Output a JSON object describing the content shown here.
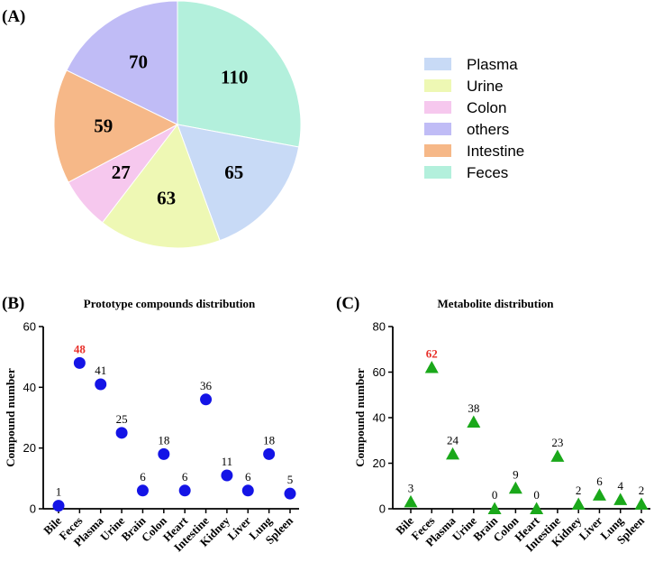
{
  "chart_data": [
    {
      "panel": "(A)",
      "type": "pie",
      "title": "",
      "categories": [
        "Feces",
        "Plasma",
        "Urine",
        "Colon",
        "Intestine",
        "others"
      ],
      "values": [
        110,
        65,
        63,
        27,
        59,
        70
      ],
      "colors": [
        "#b3f0dc",
        "#c8daf6",
        "#eef8b4",
        "#f6c8ee",
        "#f6b888",
        "#c0bcf6"
      ],
      "legend": {
        "placement": "right",
        "entries": [
          {
            "label": "Plasma",
            "color": "#c8daf6"
          },
          {
            "label": "Urine",
            "color": "#eef8b4"
          },
          {
            "label": "Colon",
            "color": "#f6c8ee"
          },
          {
            "label": "others",
            "color": "#c0bcf6"
          },
          {
            "label": "Intestine",
            "color": "#f6b888"
          },
          {
            "label": "Feces",
            "color": "#b3f0dc"
          }
        ]
      }
    },
    {
      "panel": "(B)",
      "type": "scatter",
      "title": "Prototype compounds distribution",
      "xlabel": "",
      "ylabel": "Compound number",
      "ylim": [
        0,
        60
      ],
      "yticks": [
        0,
        20,
        40,
        60
      ],
      "categories": [
        "Bile",
        "Feces",
        "Plasma",
        "Urine",
        "Brain",
        "Colon",
        "Heart",
        "Intestine",
        "Kidney",
        "Liver",
        "Lung",
        "Spleen"
      ],
      "values": [
        1,
        48,
        41,
        25,
        6,
        18,
        6,
        36,
        11,
        6,
        18,
        5
      ],
      "marker": "circle",
      "color": "#1414e6",
      "highlight_index": 1,
      "highlight_color": "#e8302a"
    },
    {
      "panel": "(C)",
      "type": "scatter",
      "title": "Metabolite distribution",
      "xlabel": "",
      "ylabel": "Compound number",
      "ylim": [
        0,
        80
      ],
      "yticks": [
        0,
        20,
        40,
        60,
        80
      ],
      "categories": [
        "Bile",
        "Feces",
        "Plasma",
        "Urine",
        "Brain",
        "Colon",
        "Heart",
        "Intestine",
        "Kidney",
        "Liver",
        "Lung",
        "Spleen"
      ],
      "values": [
        3,
        62,
        24,
        38,
        0,
        9,
        0,
        23,
        2,
        6,
        4,
        2
      ],
      "marker": "triangle",
      "color": "#1aa81a",
      "highlight_index": 1,
      "highlight_color": "#e8302a"
    }
  ]
}
